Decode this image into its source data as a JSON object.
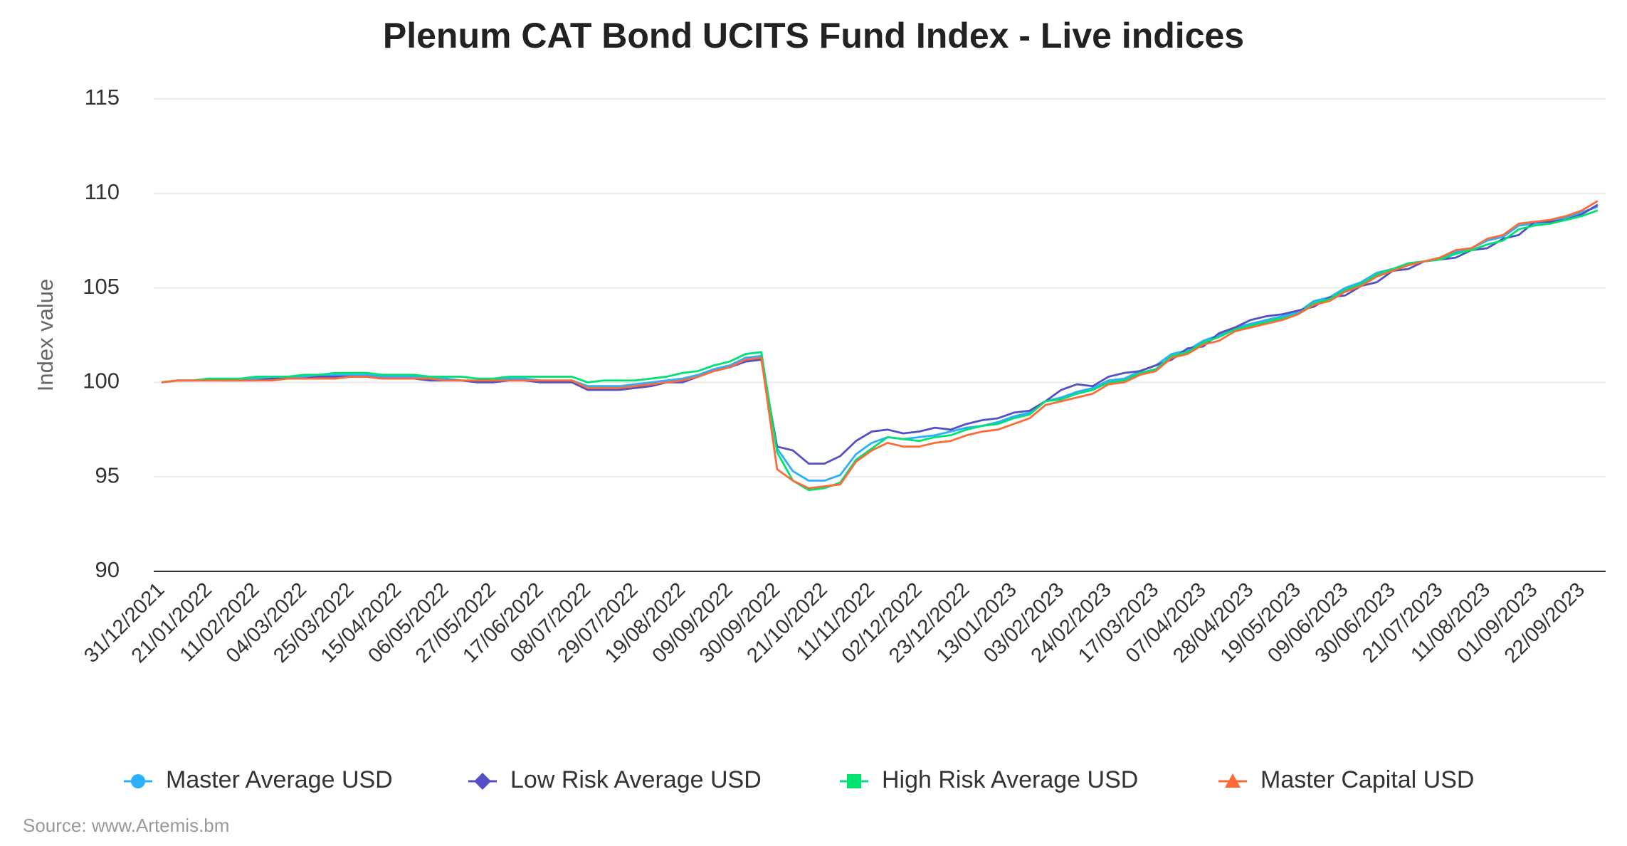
{
  "chart_data": {
    "type": "line",
    "title": "Plenum CAT Bond UCITS Fund Index - Live indices",
    "y_label": "Index value",
    "source": "Source: www.Artemis.bm",
    "legend": "bottom",
    "grid": true,
    "ylim": [
      90,
      115
    ],
    "yticks": [
      90,
      95,
      100,
      105,
      110,
      115
    ],
    "categories": [
      "31/12/2021",
      null,
      null,
      "21/01/2022",
      null,
      null,
      "11/02/2022",
      null,
      null,
      "04/03/2022",
      null,
      null,
      "25/03/2022",
      null,
      null,
      "15/04/2022",
      null,
      null,
      "06/05/2022",
      null,
      null,
      "27/05/2022",
      null,
      null,
      "17/06/2022",
      null,
      null,
      "08/07/2022",
      null,
      null,
      "29/07/2022",
      null,
      null,
      "19/08/2022",
      null,
      null,
      "09/09/2022",
      null,
      null,
      "30/09/2022",
      null,
      null,
      "21/10/2022",
      null,
      null,
      "11/11/2022",
      null,
      null,
      "02/12/2022",
      null,
      null,
      "23/12/2022",
      null,
      null,
      "13/01/2023",
      null,
      null,
      "03/02/2023",
      null,
      null,
      "24/02/2023",
      null,
      null,
      "17/03/2023",
      null,
      null,
      "07/04/2023",
      null,
      null,
      "28/04/2023",
      null,
      null,
      "19/05/2023",
      null,
      null,
      "09/06/2023",
      null,
      null,
      "30/06/2023",
      null,
      null,
      "21/07/2023",
      null,
      null,
      "11/08/2023",
      null,
      null,
      "01/09/2023",
      null,
      null,
      "22/09/2023",
      null
    ],
    "series": [
      {
        "name": "Master Average USD",
        "color": "#2caffe",
        "marker": "circle",
        "values": [
          100.0,
          100.1,
          100.1,
          100.2,
          100.1,
          100.1,
          100.2,
          100.2,
          100.3,
          100.3,
          100.3,
          100.4,
          100.4,
          100.4,
          100.3,
          100.3,
          100.3,
          100.2,
          100.2,
          100.1,
          100.1,
          100.1,
          100.2,
          100.2,
          100.1,
          100.1,
          100.1,
          99.8,
          99.8,
          99.8,
          99.9,
          100.0,
          100.1,
          100.2,
          100.4,
          100.7,
          100.9,
          101.3,
          101.4,
          96.5,
          95.3,
          94.8,
          94.8,
          95.1,
          96.2,
          96.8,
          97.1,
          97.0,
          97.1,
          97.2,
          97.4,
          97.6,
          97.7,
          97.9,
          98.2,
          98.4,
          99.0,
          99.2,
          99.5,
          99.7,
          100.1,
          100.2,
          100.6,
          100.9,
          101.5,
          101.7,
          102.2,
          102.5,
          102.9,
          103.1,
          103.3,
          103.5,
          103.7,
          104.3,
          104.5,
          105.0,
          105.3,
          105.8,
          106.0,
          106.3,
          106.4,
          106.5,
          106.9,
          107.1,
          107.5,
          107.7,
          108.3,
          108.4,
          108.5,
          108.7,
          109.0,
          109.3
        ]
      },
      {
        "name": "Low Risk Average USD",
        "color": "#544fc5",
        "marker": "diamond",
        "values": [
          100.0,
          100.1,
          100.1,
          100.1,
          100.1,
          100.1,
          100.1,
          100.2,
          100.2,
          100.2,
          100.3,
          100.3,
          100.3,
          100.3,
          100.2,
          100.2,
          100.2,
          100.1,
          100.1,
          100.1,
          100.0,
          100.0,
          100.1,
          100.1,
          100.0,
          100.0,
          100.0,
          99.6,
          99.6,
          99.6,
          99.7,
          99.8,
          100.0,
          100.0,
          100.3,
          100.6,
          100.8,
          101.1,
          101.2,
          96.6,
          96.4,
          95.7,
          95.7,
          96.1,
          96.9,
          97.4,
          97.5,
          97.3,
          97.4,
          97.6,
          97.5,
          97.8,
          98.0,
          98.1,
          98.4,
          98.5,
          99.0,
          99.6,
          99.9,
          99.8,
          100.3,
          100.5,
          100.6,
          100.9,
          101.2,
          101.8,
          101.9,
          102.6,
          102.9,
          103.3,
          103.5,
          103.6,
          103.8,
          104.0,
          104.5,
          104.6,
          105.1,
          105.3,
          105.9,
          106.0,
          106.4,
          106.5,
          106.6,
          107.0,
          107.1,
          107.6,
          107.8,
          108.5,
          108.5,
          108.6,
          108.9,
          109.4
        ]
      },
      {
        "name": "High Risk Average USD",
        "color": "#00e272",
        "marker": "square",
        "values": [
          100.0,
          100.1,
          100.1,
          100.2,
          100.2,
          100.2,
          100.3,
          100.3,
          100.3,
          100.4,
          100.4,
          100.5,
          100.5,
          100.5,
          100.4,
          100.4,
          100.4,
          100.3,
          100.3,
          100.3,
          100.2,
          100.2,
          100.3,
          100.3,
          100.3,
          100.3,
          100.3,
          100.0,
          100.1,
          100.1,
          100.1,
          100.2,
          100.3,
          100.5,
          100.6,
          100.9,
          101.1,
          101.5,
          101.6,
          96.3,
          94.8,
          94.3,
          94.4,
          94.7,
          95.9,
          96.5,
          97.1,
          97.0,
          96.9,
          97.1,
          97.2,
          97.5,
          97.7,
          97.8,
          98.1,
          98.3,
          99.0,
          99.1,
          99.4,
          99.6,
          100.0,
          100.1,
          100.5,
          100.7,
          101.4,
          101.6,
          102.1,
          102.4,
          102.8,
          103.0,
          103.2,
          103.4,
          103.6,
          104.2,
          104.4,
          104.9,
          105.2,
          105.7,
          106.0,
          106.3,
          106.4,
          106.5,
          106.8,
          107.0,
          107.3,
          107.5,
          108.1,
          108.3,
          108.4,
          108.6,
          108.8,
          109.1
        ]
      },
      {
        "name": "Master Capital USD",
        "color": "#fe6a35",
        "marker": "triangle",
        "values": [
          100.0,
          100.1,
          100.1,
          100.1,
          100.1,
          100.1,
          100.1,
          100.1,
          100.2,
          100.2,
          100.2,
          100.2,
          100.3,
          100.3,
          100.2,
          100.2,
          100.2,
          100.2,
          100.1,
          100.1,
          100.1,
          100.1,
          100.1,
          100.1,
          100.1,
          100.1,
          100.1,
          99.7,
          99.7,
          99.7,
          99.8,
          99.9,
          100.0,
          100.1,
          100.3,
          100.6,
          100.8,
          101.2,
          101.3,
          95.4,
          94.8,
          94.4,
          94.5,
          94.6,
          95.8,
          96.4,
          96.8,
          96.6,
          96.6,
          96.8,
          96.9,
          97.2,
          97.4,
          97.5,
          97.8,
          98.1,
          98.8,
          99.0,
          99.2,
          99.4,
          99.9,
          100.0,
          100.4,
          100.6,
          101.3,
          101.5,
          102.0,
          102.2,
          102.7,
          102.9,
          103.1,
          103.3,
          103.6,
          104.1,
          104.3,
          104.8,
          105.1,
          105.6,
          105.9,
          106.2,
          106.4,
          106.6,
          107.0,
          107.1,
          107.6,
          107.8,
          108.4,
          108.5,
          108.6,
          108.8,
          109.1,
          109.6
        ]
      }
    ]
  }
}
